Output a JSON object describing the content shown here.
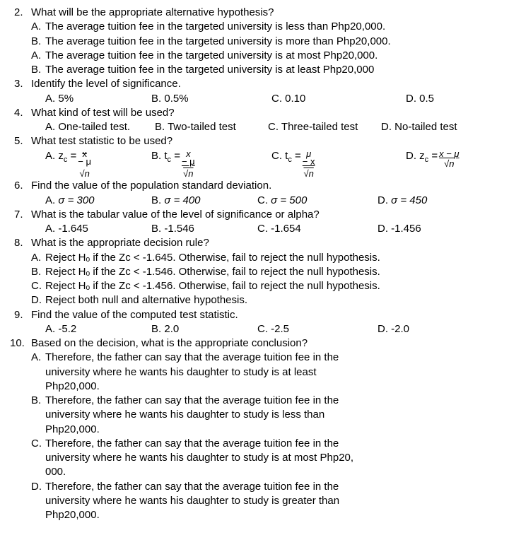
{
  "q2": {
    "num": "2.",
    "text": "What will be the appropriate alternative hypothesis?",
    "opts": [
      {
        "let": "A.",
        "txt": "The average tuition fee in the targeted university is less than Php20,000."
      },
      {
        "let": "B.",
        "txt": "The average tuition fee in the targeted university is more than Php20,000."
      },
      {
        "let": "A.",
        "txt": "The average tuition fee in the targeted university is at most Php20,000."
      },
      {
        "let": "B.",
        "txt": "The average tuition fee in the targeted university is at least Php20,000"
      }
    ]
  },
  "q3": {
    "num": "3.",
    "text": "Identify the level of significance.",
    "opts": [
      {
        "let": "A.",
        "txt": "5%"
      },
      {
        "let": "B.",
        "txt": "0.5%"
      },
      {
        "let": "C.",
        "txt": "0.10"
      },
      {
        "let": "D.",
        "txt": "0.5"
      }
    ],
    "widths": [
      150,
      170,
      190,
      100
    ]
  },
  "q4": {
    "num": "4.",
    "text": "What kind of test will be used?",
    "opts": [
      {
        "let": "A.",
        "txt": "One-tailed test."
      },
      {
        "let": "B.",
        "txt": "Two-tailed test"
      },
      {
        "let": "C.",
        "txt": "Three-tailed test"
      },
      {
        "let": "D.",
        "txt": "No-tailed test"
      }
    ],
    "widths": [
      155,
      160,
      160,
      120
    ]
  },
  "q5": {
    "num": "5.",
    "text": "What test statistic to be used?",
    "opts": [
      {
        "let": "A.",
        "lead": "z",
        "sub": "c",
        "eq": " =",
        "top": "x",
        "mid": "− μ",
        "bot": "√n",
        "strike": true
      },
      {
        "let": "B.",
        "lead": "t",
        "sub": "c",
        "eq": " = ",
        "top": "x",
        "mid": "− μ",
        "bot": "√n"
      },
      {
        "let": "C.",
        "lead": "t",
        "sub": "c",
        "eq": " = ",
        "top": "μ",
        "mid": "− x",
        "bot": "√n"
      },
      {
        "let": "D.",
        "lead": "z",
        "sub": "c",
        "eq": " =",
        "top": "x − μ",
        "mid": "",
        "bot": "√n",
        "topline": true
      }
    ],
    "widths": [
      150,
      170,
      190,
      140
    ]
  },
  "q6": {
    "num": "6.",
    "text": "Find the value of the population standard deviation.",
    "opts": [
      {
        "let": "A.",
        "txt": "σ  = 300"
      },
      {
        "let": "B.",
        "txt": "σ  = 400"
      },
      {
        "let": "C.",
        "txt": "σ  = 500"
      },
      {
        "let": "D.",
        "txt": "σ  = 450"
      }
    ],
    "widths": [
      150,
      150,
      170,
      120
    ]
  },
  "q7": {
    "num": "7.",
    "text": "What is the tabular value of the level of significance or alpha?",
    "opts": [
      {
        "let": "A.",
        "txt": "-1.645"
      },
      {
        "let": "B.",
        "txt": "-1.546"
      },
      {
        "let": "C.",
        "txt": "-1.654"
      },
      {
        "let": "D.",
        "txt": "-1.456"
      }
    ],
    "widths": [
      150,
      150,
      170,
      120
    ]
  },
  "q8": {
    "num": "8.",
    "text": "What is the appropriate decision rule?",
    "opts": [
      {
        "let": "A.",
        "txt": "Reject Hₒ if the Zc < -1.645. Otherwise, fail to reject the null hypothesis."
      },
      {
        "let": "B.",
        "txt": "Reject Hₒ if the Zc < -1.546. Otherwise, fail to reject the null hypothesis."
      },
      {
        "let": "C.",
        "txt": "Reject Hₒ if the Zc < -1.456. Otherwise, fail to reject the null hypothesis."
      },
      {
        "let": "D.",
        "txt": "Reject both null and alternative hypothesis."
      }
    ]
  },
  "q9": {
    "num": "9.",
    "text": "Find the value of the computed test statistic.",
    "opts": [
      {
        "let": "A.",
        "txt": "-5.2"
      },
      {
        "let": "B.",
        "txt": "2.0"
      },
      {
        "let": "C.",
        "txt": "-2.5"
      },
      {
        "let": "D.",
        "txt": "-2.0"
      }
    ],
    "widths": [
      150,
      150,
      170,
      120
    ]
  },
  "q10": {
    "num": "10.",
    "text": "Based on the decision, what is the appropriate conclusion?",
    "opts": [
      {
        "let": "A.",
        "lines": [
          "Therefore, the father can say that the average tuition fee in the",
          "university  where he wants his daughter to study is at least",
          "Php20,000."
        ]
      },
      {
        "let": "B.",
        "lines": [
          "Therefore, the father can say that the average tuition fee in the",
          "university  where he wants his daughter to study is less than",
          "Php20,000."
        ]
      },
      {
        "let": "C.",
        "lines": [
          "Therefore, the father can say that the average tuition fee in the",
          "university  where he wants his daughter to study is at most Php20,",
          "000."
        ]
      },
      {
        "let": "D.",
        "lines": [
          "Therefore, the father can say that the average tuition fee in the",
          "university  where he wants his daughter to study is greater than",
          "Php20,000."
        ]
      }
    ]
  }
}
